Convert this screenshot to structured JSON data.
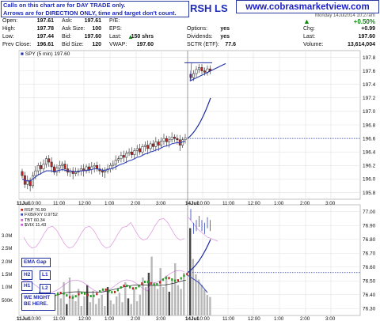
{
  "notice": {
    "line1": "Calls on this chart are for DAY TRADE only.",
    "line2": "Arrows are for DIRECTION ONLY, time and target don't count."
  },
  "ticker_partial": "RSH LS",
  "site_url": "www.cobrasmarketview.com",
  "datestamp_partial": "Monday 14Jul2014 10:27am",
  "quote": {
    "open_label": "Open:",
    "open": "197.61",
    "high_label": "High:",
    "high": "197.78",
    "low_label": "Low:",
    "low": "197.44",
    "prev_label": "Prev Close:",
    "prev": "196.61",
    "ask_label": "Ask:",
    "ask": "197.61",
    "asksize_label": "Ask Size:",
    "asksize": "100",
    "bid_label": "Bid:",
    "bid": "197.60",
    "bidsize_label": "Bid Size:",
    "bidsize": "120",
    "pe_label": "P/E:",
    "pe": "",
    "eps_label": "EPS:",
    "eps": "",
    "last_label": "Last:",
    "last": "150 shrs",
    "vwap_label": "VWAP:",
    "vwap": "197.60",
    "options_label": "Options:",
    "options": "yes",
    "dividends_label": "Dividends:",
    "dividends": "yes",
    "sctr_label": "SCTR (ETF):",
    "sctr": "77.6",
    "pct_change": "+0.50%",
    "chg_label": "Chg:",
    "chg": "+0.99",
    "last2_label": "Last:",
    "last2": "197.60",
    "volume_label": "Volume:",
    "volume": "13,614,004"
  },
  "colors": {
    "price_candle_up": "#2233aa",
    "price_candle_down": "#cc2222",
    "ema_line": "#3344bb",
    "projection": "#1a2aa0",
    "dotted_level": "#2a3aa8",
    "pct_up": "#0a8a0a",
    "rsp_dot_up": "#20a020",
    "rsp_dot_down": "#c02020",
    "tbt": "#cc66cc",
    "vix": "#c060d0",
    "volume_bar": "#b8b8b8",
    "volume_bar_dark": "#444444",
    "grid": "#e2e2e2"
  },
  "icons": {
    "up_arrow": "up-triangle-icon",
    "volume_up": "chevron-up-icon"
  },
  "chart_data": [
    {
      "type": "candlestick",
      "legend": "SPY (5 min) 197.60",
      "x_ticks": [
        "11Jul",
        "10:00",
        "11:00",
        "12:00",
        "1:00",
        "2:00",
        "3:00",
        "14Jul",
        "10:00",
        "11:00",
        "12:00",
        "1:00",
        "2:00",
        "3:00"
      ],
      "y_ticks": [
        195.8,
        196.0,
        196.2,
        196.4,
        196.6,
        196.8,
        197.0,
        197.2,
        197.4,
        197.6,
        197.8
      ],
      "ylim": [
        195.7,
        197.9
      ],
      "close": [
        196.05,
        195.92,
        195.98,
        195.9,
        196.05,
        196.12,
        196.2,
        196.15,
        196.22,
        196.3,
        196.25,
        196.18,
        196.1,
        196.16,
        196.2,
        196.22,
        196.15,
        196.1,
        196.12,
        196.08,
        196.1,
        196.12,
        196.15,
        196.12,
        196.18,
        196.14,
        196.18,
        196.2,
        196.15,
        196.12,
        196.1,
        196.12,
        196.15,
        196.2,
        196.22,
        196.28,
        196.3,
        196.35,
        196.32,
        196.38,
        196.4,
        196.36,
        196.42,
        196.45,
        196.4,
        196.48,
        196.5,
        196.45,
        196.52,
        196.48,
        196.55,
        196.5,
        196.56,
        196.6,
        196.55,
        196.58,
        196.62,
        196.6,
        196.58,
        196.5,
        196.58,
        196.61
      ],
      "session2_close": [
        197.5,
        197.56,
        197.62,
        197.65,
        197.6,
        197.58,
        197.63,
        197.6
      ],
      "ema": [
        196.0,
        195.98,
        195.97,
        195.97,
        196.0,
        196.03,
        196.06,
        196.08,
        196.1,
        196.12,
        196.12,
        196.12,
        196.11,
        196.12,
        196.13,
        196.14,
        196.13,
        196.12,
        196.12,
        196.11,
        196.11,
        196.11,
        196.12,
        196.12,
        196.13,
        196.13,
        196.14,
        196.15,
        196.15,
        196.14,
        196.13,
        196.13,
        196.14,
        196.15,
        196.16,
        196.18,
        196.2,
        196.22,
        196.23,
        196.25,
        196.27,
        196.28,
        196.3,
        196.32,
        196.33,
        196.35,
        196.37,
        196.38,
        196.4,
        196.41,
        196.43,
        196.44,
        196.46,
        196.48,
        196.49,
        196.5,
        196.52,
        196.53,
        196.54,
        196.53,
        196.55,
        196.56
      ],
      "projection": {
        "from": 196.6,
        "to": 197.2
      },
      "dotted_level": 196.6,
      "triangle": {
        "top": 197.72,
        "low": 197.45
      },
      "series": [
        {
          "name": "SPY (5 min) 197.60"
        }
      ]
    },
    {
      "type": "line",
      "legend": [
        "RSP 76.90",
        "FXB/FXY 0.9752",
        "TBT 60.34",
        "$VIX 11.43"
      ],
      "right_ticks": [
        76.3,
        76.4,
        76.5,
        76.6,
        76.7,
        76.8,
        76.9,
        77.0
      ],
      "left_volume_ticks": [
        "3.0M",
        "2.5M",
        "2.0M",
        "1.5M",
        "1.0M",
        "500K"
      ],
      "dotted_level": 76.56,
      "projection": {
        "from": 76.56,
        "to": 76.8
      },
      "session2_rsp": [
        76.98,
        76.88,
        76.9,
        76.93,
        76.9,
        76.88,
        76.92,
        76.9
      ]
    }
  ],
  "annotations": {
    "ema_gap": "EMA Gap",
    "h2": "H2",
    "l1": "L1",
    "h1": "H1",
    "l2": "L2",
    "we_might": "WE MIGHT",
    "be_here": "BE HERE."
  }
}
